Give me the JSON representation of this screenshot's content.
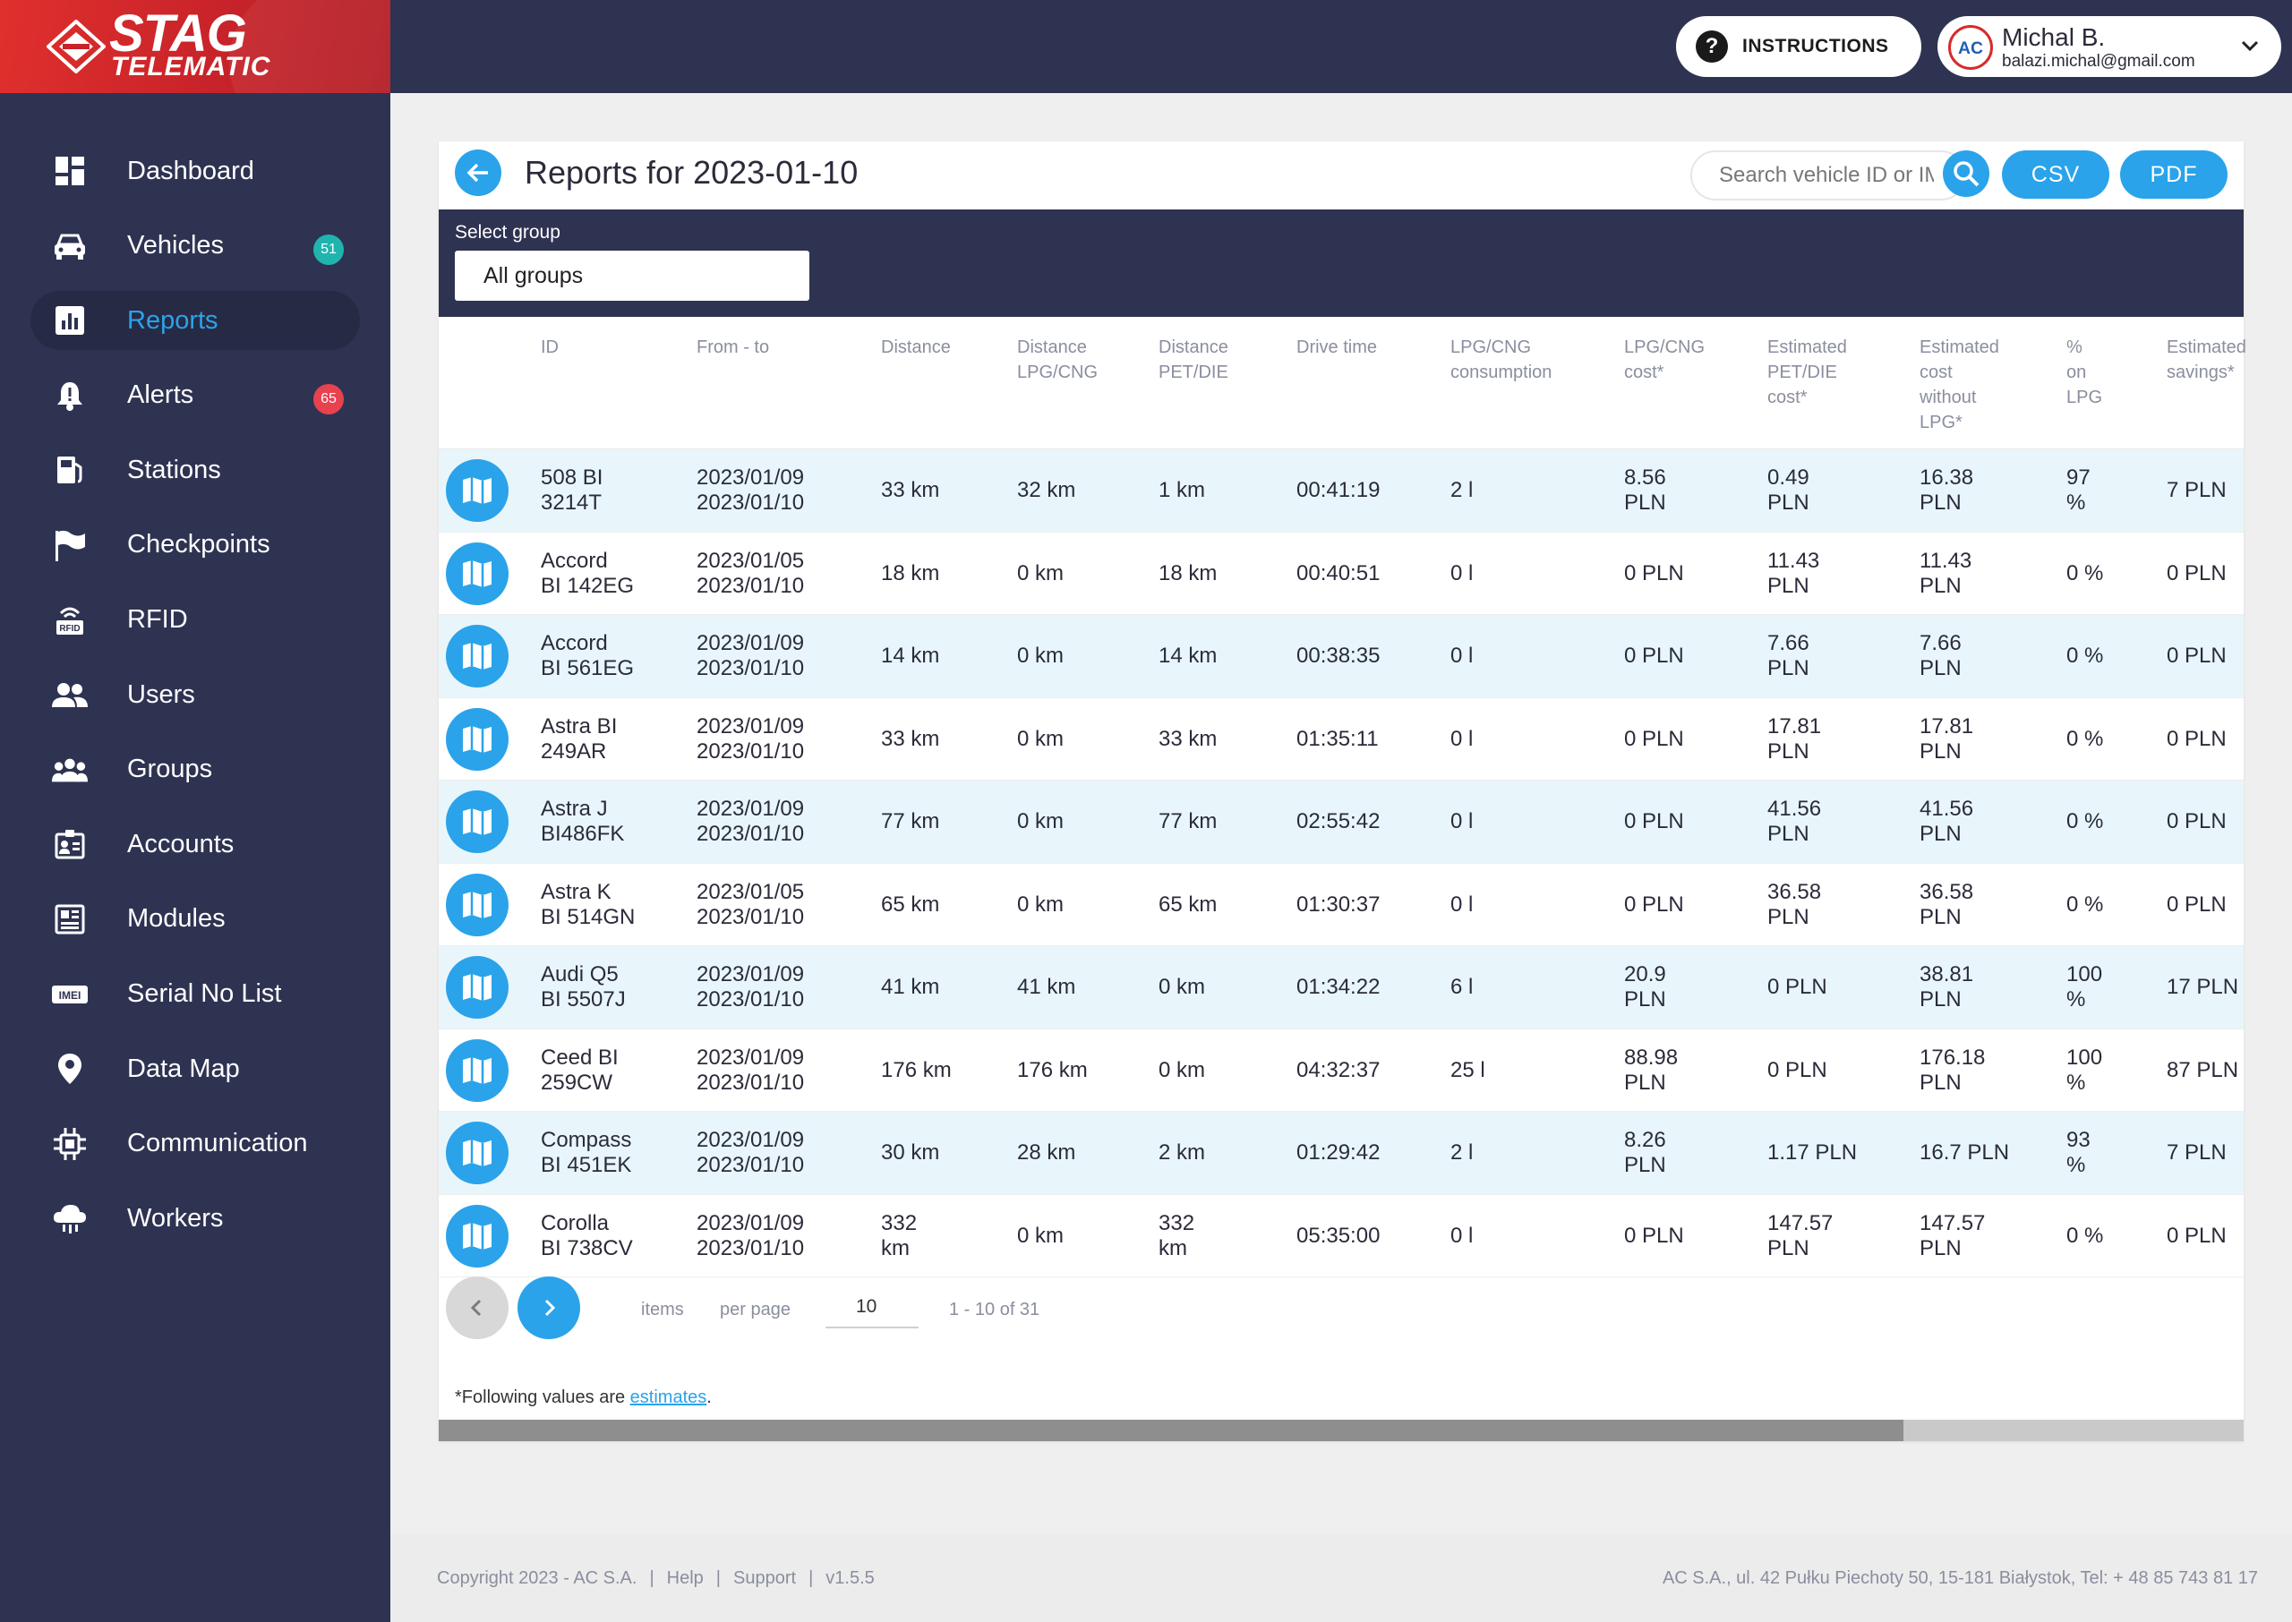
{
  "brand": {
    "line1": "STAG",
    "line2": "TELEMATIC"
  },
  "nav": [
    {
      "label": "Dashboard",
      "icon": "dashboard-icon"
    },
    {
      "label": "Vehicles",
      "icon": "car-icon",
      "badge": "51"
    },
    {
      "label": "Reports",
      "icon": "bar-chart-icon",
      "active": true
    },
    {
      "label": "Alerts",
      "icon": "bell-icon",
      "badge": "65"
    },
    {
      "label": "Stations",
      "icon": "station-icon"
    },
    {
      "label": "Checkpoints",
      "icon": "flag-icon"
    },
    {
      "label": "RFID",
      "icon": "rfid-icon"
    },
    {
      "label": "Users",
      "icon": "users-icon"
    },
    {
      "label": "Groups",
      "icon": "groups-icon"
    },
    {
      "label": "Accounts",
      "icon": "accounts-icon"
    },
    {
      "label": "Modules",
      "icon": "modules-icon"
    },
    {
      "label": "Serial No List",
      "icon": "imei-icon"
    },
    {
      "label": "Data Map",
      "icon": "map-pin-icon"
    },
    {
      "label": "Communication",
      "icon": "chip-icon"
    },
    {
      "label": "Workers",
      "icon": "cloud-icon"
    }
  ],
  "header": {
    "instructions": "INSTRUCTIONS",
    "user_name": "Michal B.",
    "user_email": "balazi.michal@gmail.com"
  },
  "report": {
    "title": "Reports for 2023-01-10",
    "search_placeholder": "Search vehicle ID or IMEI",
    "csv": "CSV",
    "pdf": "PDF",
    "group_label": "Select group",
    "group_value": "All groups"
  },
  "columns": [
    [
      "ID"
    ],
    [
      "From - to"
    ],
    [
      "Distance"
    ],
    [
      "Distance",
      "LPG/CNG"
    ],
    [
      "Distance",
      "PET/DIE"
    ],
    [
      "Drive time"
    ],
    [
      "LPG/CNG",
      "consumption"
    ],
    [
      "LPG/CNG",
      "cost*"
    ],
    [
      "Estimated",
      "PET/DIE",
      "cost*"
    ],
    [
      "Estimated",
      "cost",
      "without",
      "LPG*"
    ],
    [
      "%",
      "on",
      "LPG"
    ],
    [
      "Estimated",
      "savings*"
    ]
  ],
  "rows": [
    [
      [
        "508 BI",
        "3214T"
      ],
      [
        "2023/01/09",
        "2023/01/10"
      ],
      [
        "33 km"
      ],
      [
        "32 km"
      ],
      [
        "1 km"
      ],
      [
        "00:41:19"
      ],
      [
        "2 l"
      ],
      [
        "8.56",
        "PLN"
      ],
      [
        "0.49",
        "PLN"
      ],
      [
        "16.38",
        "PLN"
      ],
      [
        "97",
        "%"
      ],
      [
        "7 PLN"
      ]
    ],
    [
      [
        "Accord",
        "BI 142EG"
      ],
      [
        "2023/01/05",
        "2023/01/10"
      ],
      [
        "18 km"
      ],
      [
        "0 km"
      ],
      [
        "18 km"
      ],
      [
        "00:40:51"
      ],
      [
        "0 l"
      ],
      [
        "0 PLN"
      ],
      [
        "11.43",
        "PLN"
      ],
      [
        "11.43",
        "PLN"
      ],
      [
        "0 %"
      ],
      [
        "0 PLN"
      ]
    ],
    [
      [
        "Accord",
        "BI 561EG"
      ],
      [
        "2023/01/09",
        "2023/01/10"
      ],
      [
        "14 km"
      ],
      [
        "0 km"
      ],
      [
        "14 km"
      ],
      [
        "00:38:35"
      ],
      [
        "0 l"
      ],
      [
        "0 PLN"
      ],
      [
        "7.66",
        "PLN"
      ],
      [
        "7.66",
        "PLN"
      ],
      [
        "0 %"
      ],
      [
        "0 PLN"
      ]
    ],
    [
      [
        "Astra BI",
        "249AR"
      ],
      [
        "2023/01/09",
        "2023/01/10"
      ],
      [
        "33 km"
      ],
      [
        "0 km"
      ],
      [
        "33 km"
      ],
      [
        "01:35:11"
      ],
      [
        "0 l"
      ],
      [
        "0 PLN"
      ],
      [
        "17.81",
        "PLN"
      ],
      [
        "17.81",
        "PLN"
      ],
      [
        "0 %"
      ],
      [
        "0 PLN"
      ]
    ],
    [
      [
        "Astra J",
        "BI486FK"
      ],
      [
        "2023/01/09",
        "2023/01/10"
      ],
      [
        "77 km"
      ],
      [
        "0 km"
      ],
      [
        "77 km"
      ],
      [
        "02:55:42"
      ],
      [
        "0 l"
      ],
      [
        "0 PLN"
      ],
      [
        "41.56",
        "PLN"
      ],
      [
        "41.56",
        "PLN"
      ],
      [
        "0 %"
      ],
      [
        "0 PLN"
      ]
    ],
    [
      [
        "Astra K",
        "BI 514GN"
      ],
      [
        "2023/01/05",
        "2023/01/10"
      ],
      [
        "65 km"
      ],
      [
        "0 km"
      ],
      [
        "65 km"
      ],
      [
        "01:30:37"
      ],
      [
        "0 l"
      ],
      [
        "0 PLN"
      ],
      [
        "36.58",
        "PLN"
      ],
      [
        "36.58",
        "PLN"
      ],
      [
        "0 %"
      ],
      [
        "0 PLN"
      ]
    ],
    [
      [
        "Audi Q5",
        "BI 5507J"
      ],
      [
        "2023/01/09",
        "2023/01/10"
      ],
      [
        "41 km"
      ],
      [
        "41 km"
      ],
      [
        "0 km"
      ],
      [
        "01:34:22"
      ],
      [
        "6 l"
      ],
      [
        "20.9",
        "PLN"
      ],
      [
        "0 PLN"
      ],
      [
        "38.81",
        "PLN"
      ],
      [
        "100",
        "%"
      ],
      [
        "17 PLN"
      ]
    ],
    [
      [
        "Ceed BI",
        "259CW"
      ],
      [
        "2023/01/09",
        "2023/01/10"
      ],
      [
        "176 km"
      ],
      [
        "176 km"
      ],
      [
        "0 km"
      ],
      [
        "04:32:37"
      ],
      [
        "25 l"
      ],
      [
        "88.98",
        "PLN"
      ],
      [
        "0 PLN"
      ],
      [
        "176.18",
        "PLN"
      ],
      [
        "100",
        "%"
      ],
      [
        "87 PLN"
      ]
    ],
    [
      [
        "Compass",
        "BI 451EK"
      ],
      [
        "2023/01/09",
        "2023/01/10"
      ],
      [
        "30 km"
      ],
      [
        "28 km"
      ],
      [
        "2 km"
      ],
      [
        "01:29:42"
      ],
      [
        "2 l"
      ],
      [
        "8.26",
        "PLN"
      ],
      [
        "1.17 PLN"
      ],
      [
        "16.7 PLN"
      ],
      [
        "93",
        "%"
      ],
      [
        "7 PLN"
      ]
    ],
    [
      [
        "Corolla",
        "BI 738CV"
      ],
      [
        "2023/01/09",
        "2023/01/10"
      ],
      [
        "332",
        "km"
      ],
      [
        "0 km"
      ],
      [
        "332",
        "km"
      ],
      [
        "05:35:00"
      ],
      [
        "0 l"
      ],
      [
        "0 PLN"
      ],
      [
        "147.57",
        "PLN"
      ],
      [
        "147.57",
        "PLN"
      ],
      [
        "0 %"
      ],
      [
        "0 PLN"
      ]
    ]
  ],
  "pager": {
    "items": "items",
    "per_page": "per page",
    "page_size": "10",
    "range": "1 - 10 of 31"
  },
  "footnote": {
    "text": "*Following values are ",
    "link": "estimates",
    "end": "."
  },
  "footer": {
    "copyright": "Copyright 2023 - AC S.A.",
    "help": "Help",
    "support": "Support",
    "version": "v1.5.5",
    "address": "AC S.A., ul. 42 Pułku Piechoty 50, 15-181 Białystok, Tel: + 48 85 743 81 17"
  },
  "colors": {
    "accent": "#2aa3ea",
    "sidebar": "#2e3352",
    "row_alt": "#e8f6fb",
    "brand_red": "#c8232a"
  }
}
